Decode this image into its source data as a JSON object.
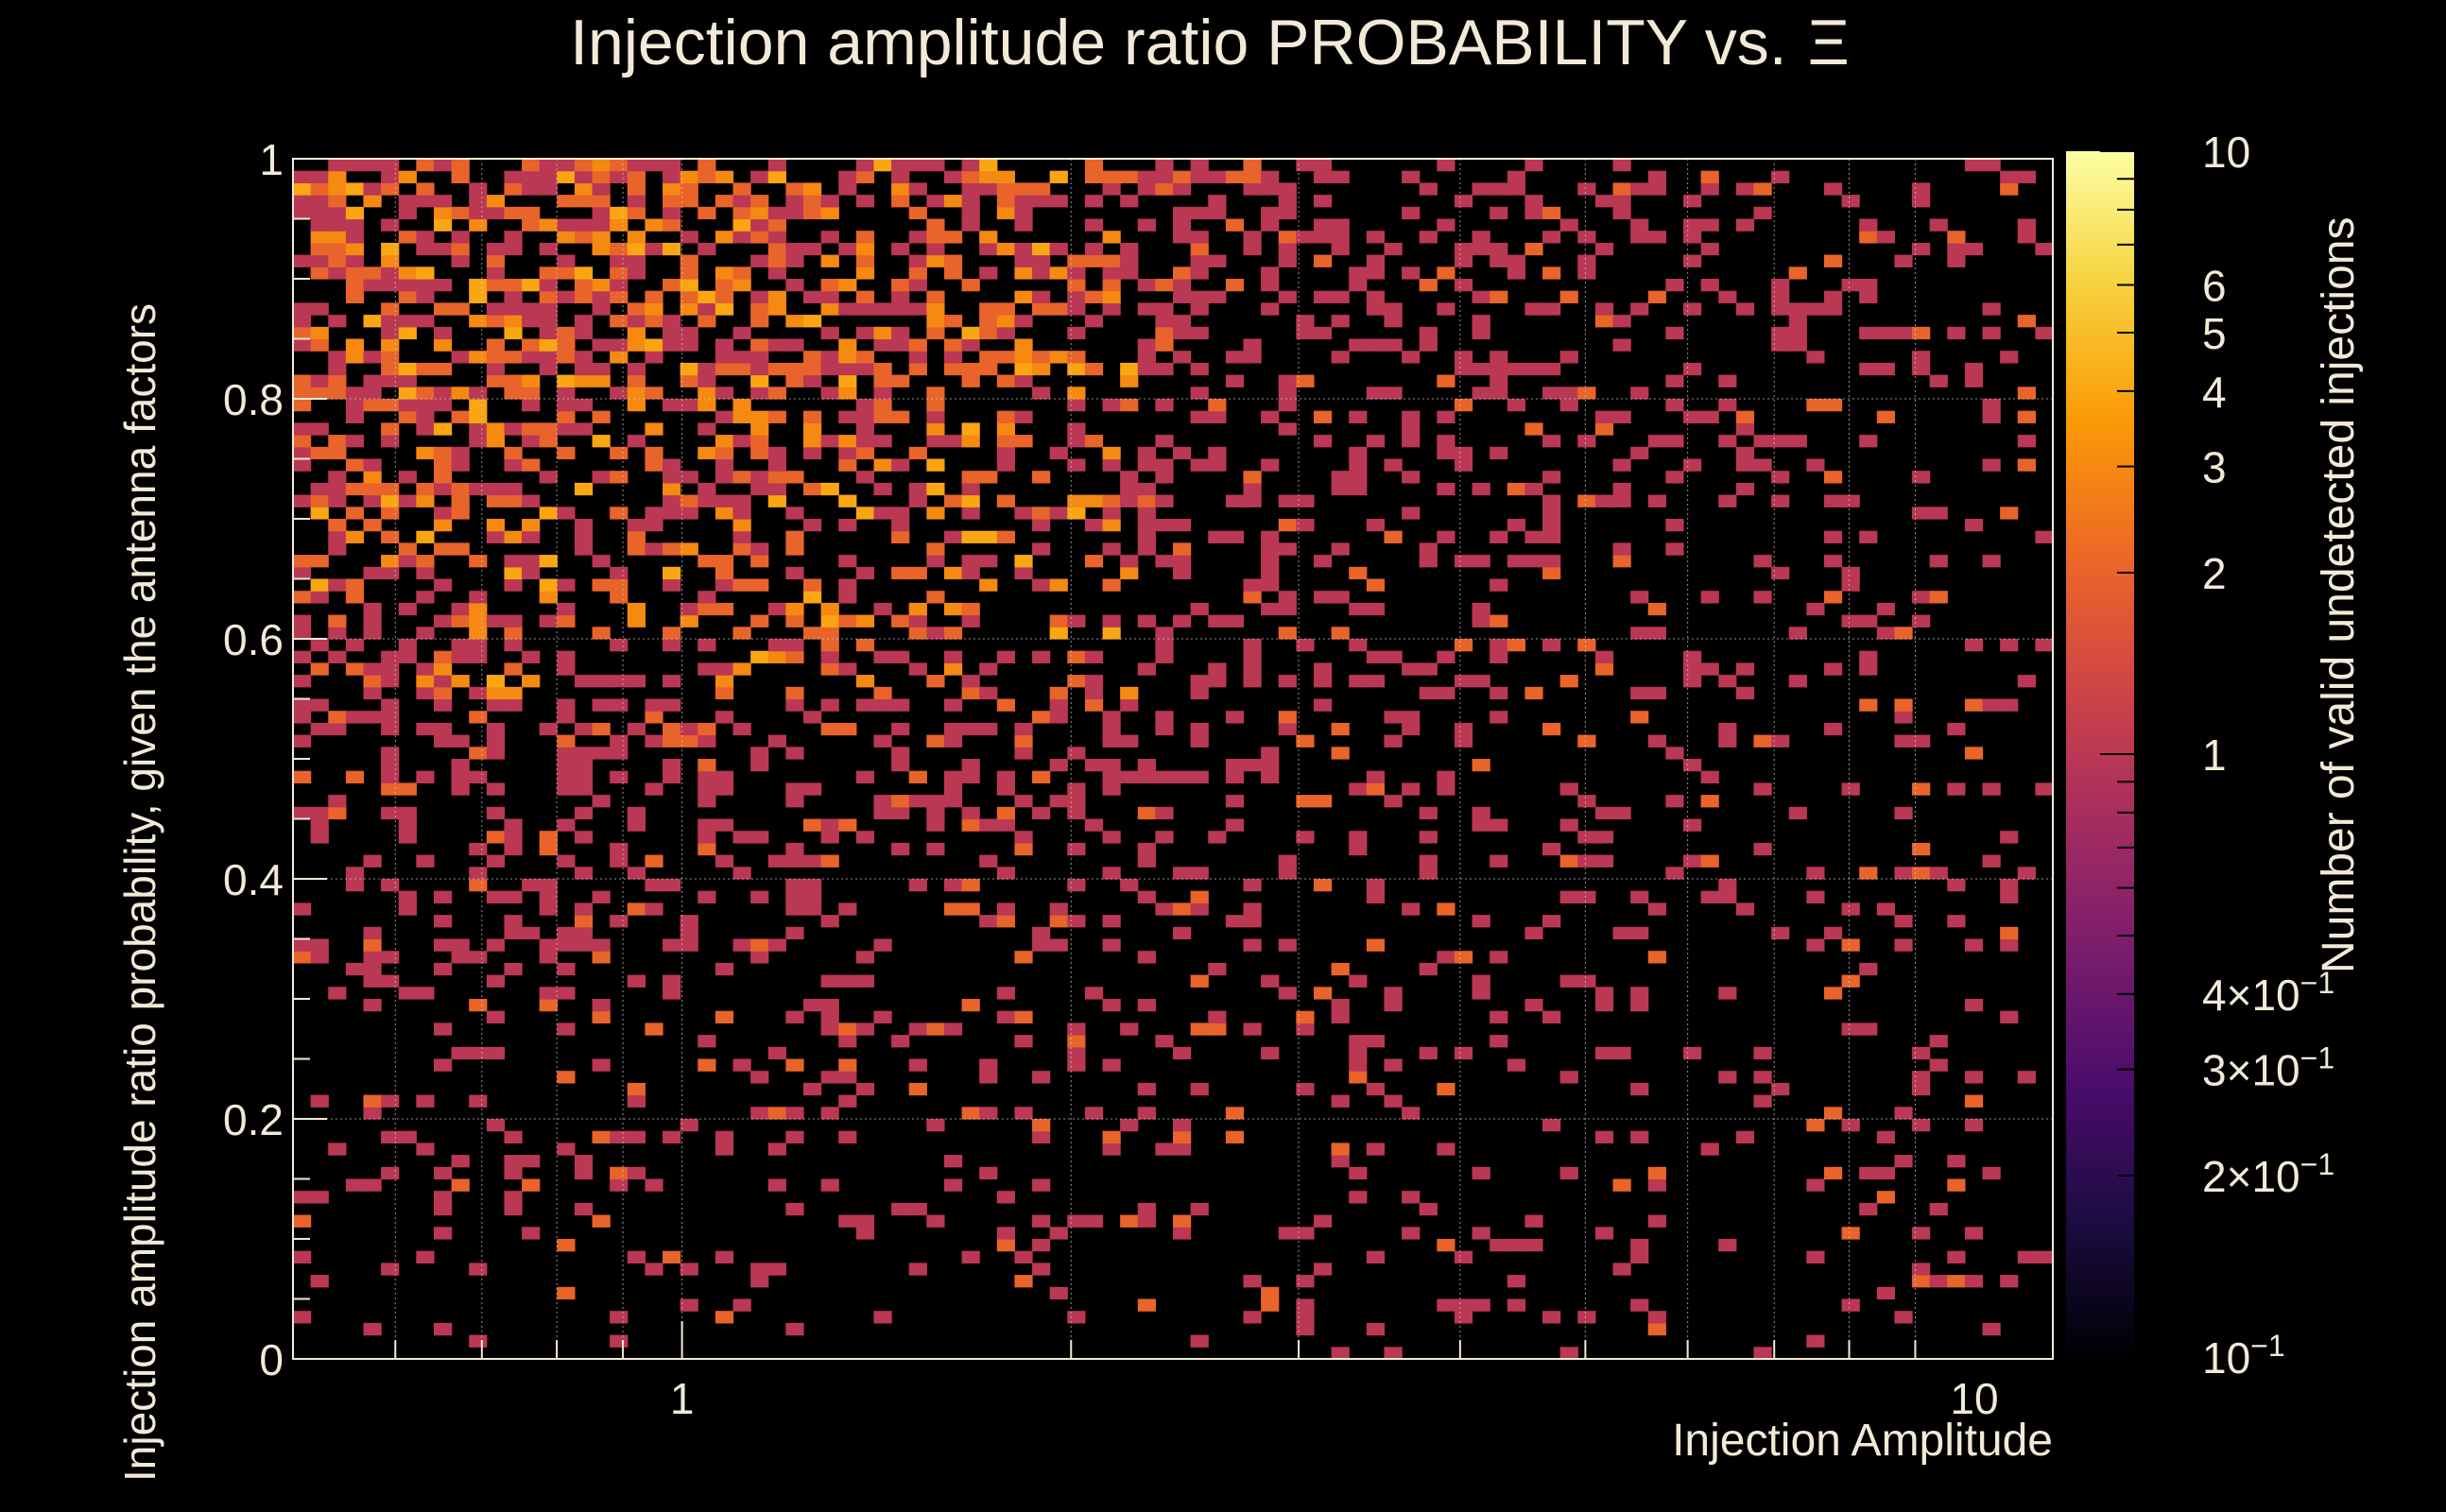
{
  "chart_data": {
    "type": "heatmap",
    "title": "Injection amplitude ratio PROBABILITY vs.",
    "title_symbol": "Ξ",
    "xlabel": "Injection Amplitude",
    "ylabel": "Injection amplitude ratio probability, given the antenna factors",
    "zlabel": "Number of valid undetected injections",
    "x_scale": "log",
    "xlim": [
      0.5,
      11.5
    ],
    "x_ticks": [
      1,
      10
    ],
    "x_tick_labels": [
      "1",
      "10"
    ],
    "ylim": [
      0,
      1
    ],
    "y_ticks": [
      0,
      0.2,
      0.4,
      0.6,
      0.8,
      1
    ],
    "y_tick_labels": [
      "0",
      "0.2",
      "0.4",
      "0.6",
      "0.8",
      "1"
    ],
    "z_scale": "log",
    "zlim": [
      0.1,
      10
    ],
    "z_ticks": [
      {
        "value": 10,
        "label": "10"
      },
      {
        "value": 6,
        "label": "6"
      },
      {
        "value": 5,
        "label": "5"
      },
      {
        "value": 4,
        "label": "4"
      },
      {
        "value": 3,
        "label": "3"
      },
      {
        "value": 2,
        "label": "2"
      },
      {
        "value": 1,
        "label": "1"
      },
      {
        "value": 0.4,
        "label": "4×10",
        "exp": "−1"
      },
      {
        "value": 0.3,
        "label": "3×10",
        "exp": "−1"
      },
      {
        "value": 0.2,
        "label": "2×10",
        "exp": "−1"
      },
      {
        "value": 0.1,
        "label": "10",
        "exp": "−1"
      }
    ],
    "bins": {
      "nx": 100,
      "ny": 100
    },
    "grid": true,
    "colormap": [
      "#000004",
      "#1b0c41",
      "#4a0c6b",
      "#781c6d",
      "#a52c60",
      "#cf4446",
      "#ed6925",
      "#fb9b06",
      "#f7d13d",
      "#fcffa4"
    ],
    "palette_note": "inferno-like",
    "data_summary": {
      "rows_top_to_bottom_density": "counts mostly 1–4 near x<2 and y>0.6, sparse single counts elsewhere"
    }
  },
  "colors": {
    "background": "#000000",
    "axis": "#f2ead7",
    "grid": "#cfcfcf"
  }
}
